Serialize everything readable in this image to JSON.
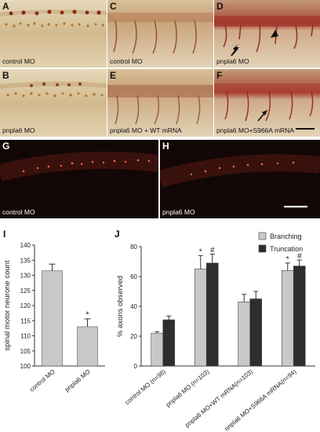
{
  "panels": {
    "A": {
      "letter": "A",
      "caption": "control MO"
    },
    "B": {
      "letter": "B",
      "caption": "pnpla6 MO"
    },
    "C": {
      "letter": "C",
      "caption": "control MO"
    },
    "D": {
      "letter": "D",
      "caption": "pnpla6 MO"
    },
    "E": {
      "letter": "E",
      "caption": "pnpla6 MO + WT mRNA"
    },
    "F": {
      "letter": "F",
      "caption": "pnpla6 MO+S966A mRNA"
    },
    "G": {
      "letter": "G",
      "caption": "control MO"
    },
    "H": {
      "letter": "H",
      "caption": "pnpla6 MO"
    }
  },
  "colors": {
    "bright_bg": "#d9c7a4",
    "stain": "#9b3a1c",
    "fluor_bg": "#120706",
    "fluor": "#e04a28",
    "bar_light": "#c8c8c8",
    "bar_dark": "#2e2e2e"
  },
  "chart_data": [
    {
      "panel": "I",
      "type": "bar",
      "categories": [
        "control MO",
        "pnpla6 MO"
      ],
      "values": [
        131.5,
        113
      ],
      "errors": [
        2.2,
        2.6
      ],
      "significance": [
        "",
        "*"
      ],
      "ylabel": "spinal motor neurone count",
      "ylim": [
        100,
        140
      ],
      "yticks": [
        100,
        105,
        110,
        115,
        120,
        125,
        130,
        135,
        140
      ],
      "grid": false
    },
    {
      "panel": "J",
      "type": "bar",
      "categories": [
        "control MO (n=98)",
        "pnpla6 MO (n=103)",
        "pnpla6 MO+WT mRNA(n=103)",
        "pnpla6 MO+S966A mRNA(n=94)"
      ],
      "series": [
        {
          "name": "Branching",
          "values": [
            22,
            65,
            43,
            64
          ],
          "errors": [
            1,
            9,
            5,
            5
          ],
          "marks": [
            "",
            "*",
            "",
            "*"
          ]
        },
        {
          "name": "Truncation",
          "values": [
            31,
            69,
            45,
            67
          ],
          "errors": [
            2.5,
            6,
            5,
            4
          ],
          "marks": [
            "",
            "#",
            "",
            "#"
          ]
        }
      ],
      "ylabel": "% axons observed",
      "ylim": [
        0,
        80
      ],
      "yticks": [
        0,
        20,
        40,
        60,
        80
      ],
      "legend": "top-right",
      "grid": false
    }
  ]
}
